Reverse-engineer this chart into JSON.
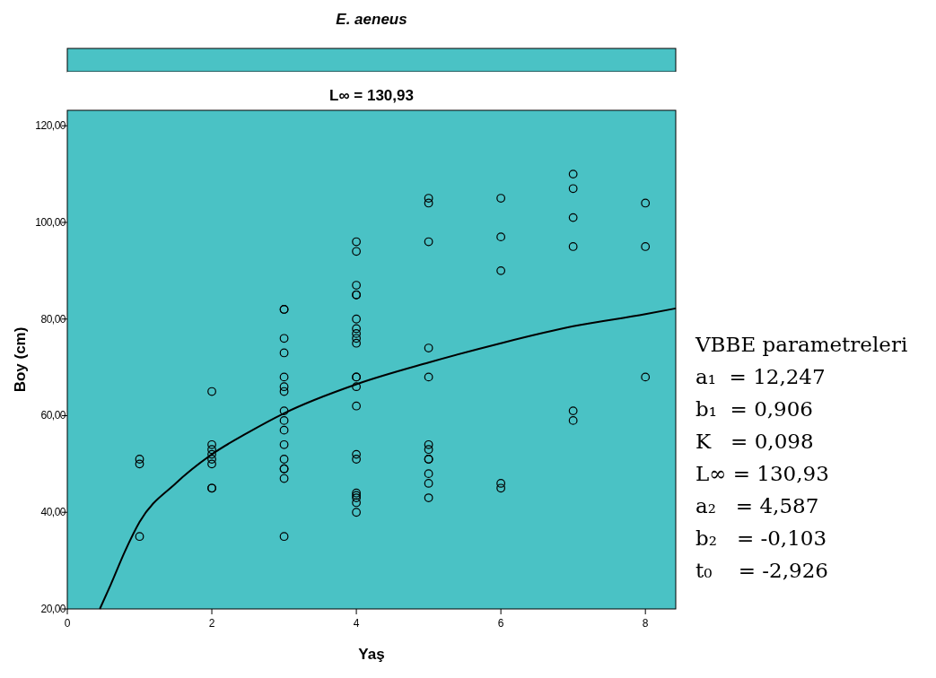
{
  "chart_data": {
    "type": "scatter",
    "title": "E. aeneus",
    "subtitle": "L∞ = 130,93",
    "xlabel": "Yaş",
    "ylabel": "Boy (cm)",
    "annotations": [
      "VBBE parametreleri",
      "a₁  = 12,247",
      "b₁  = 0,906",
      "K   = 0,098",
      "L∞ = 130,93",
      "a₂   = 4,587",
      "b₂   = -0,103",
      "t₀    = -2,926"
    ],
    "xlim": [
      0,
      8.42
    ],
    "xticks": [
      0,
      2,
      4,
      6,
      8
    ],
    "ylim": [
      20,
      123.2
    ],
    "yticks": [
      {
        "value": 20,
        "label": "20,00"
      },
      {
        "value": 40,
        "label": "40,00"
      },
      {
        "value": 60,
        "label": "60,00"
      },
      {
        "value": 80,
        "label": "80,00"
      },
      {
        "value": 100,
        "label": "100,00"
      },
      {
        "value": 120,
        "label": "120,00"
      }
    ],
    "marker": "circle",
    "grid": false,
    "series": [
      {
        "color": "#000000",
        "x": [
          1,
          1,
          1,
          2,
          2,
          2,
          2,
          2,
          2,
          2,
          2,
          3,
          3,
          3,
          3,
          3,
          3,
          3,
          3,
          3,
          3,
          3,
          3,
          3,
          3,
          3,
          3,
          4,
          4,
          4,
          4,
          4,
          4,
          4,
          4,
          4,
          4,
          4,
          4,
          4,
          4,
          4,
          4,
          4,
          4,
          4,
          4,
          4,
          5,
          5,
          5,
          5,
          5,
          5,
          5,
          5,
          5,
          5,
          5,
          5,
          6,
          6,
          6,
          6,
          6,
          7,
          7,
          7,
          7,
          7,
          7,
          8,
          8,
          8
        ],
        "values": [
          51,
          50,
          35,
          65,
          54,
          53,
          52,
          51,
          50,
          45,
          45,
          82,
          82,
          76,
          73,
          68,
          66,
          65,
          61,
          59,
          57,
          54,
          51,
          49,
          49,
          47,
          35,
          96,
          94,
          87,
          85,
          85,
          80,
          78,
          77,
          76,
          75,
          68,
          68,
          66,
          62,
          52,
          51,
          44,
          43.5,
          43,
          42,
          40,
          105,
          104,
          96,
          74,
          68,
          54,
          53,
          51,
          51,
          48,
          46,
          43,
          105,
          97,
          90,
          46,
          45,
          110,
          107,
          101,
          95,
          61,
          59,
          104,
          95,
          68
        ]
      },
      {
        "type": "line",
        "color": "#000000",
        "marker": "none",
        "x": [
          0.45,
          0.6,
          0.8,
          1,
          1.5,
          2,
          2.5,
          3,
          4,
          5,
          6,
          7,
          8,
          8.42
        ],
        "values": [
          20,
          25,
          32,
          38,
          46,
          52,
          56.5,
          60.5,
          66.5,
          71,
          75,
          78.5,
          81,
          82.2
        ]
      }
    ]
  }
}
